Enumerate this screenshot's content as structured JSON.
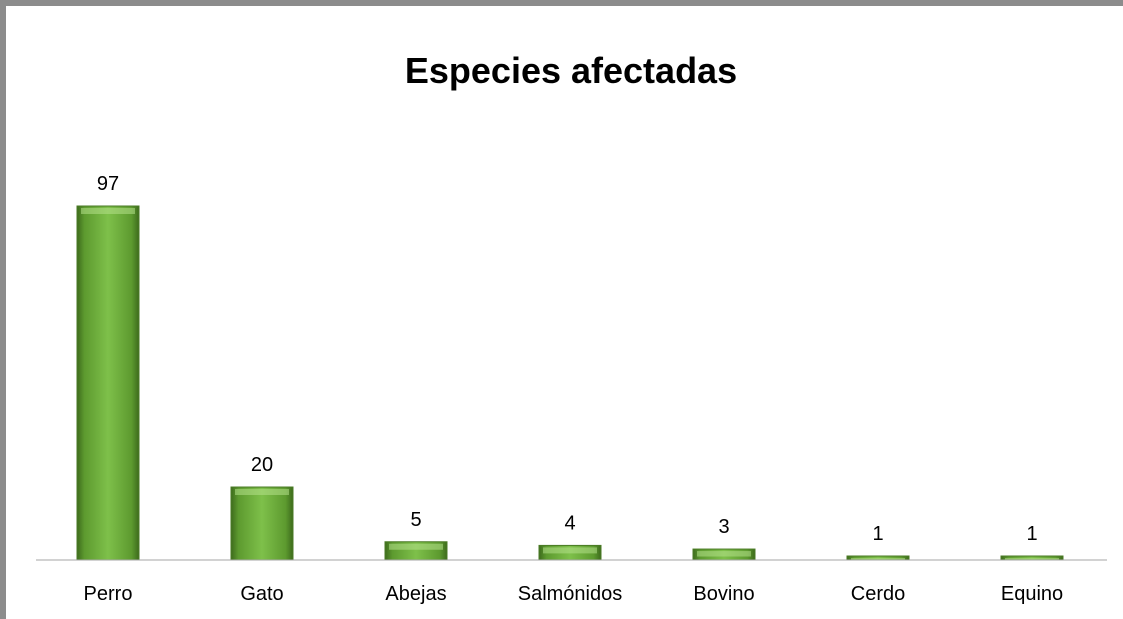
{
  "chart_data": {
    "type": "bar",
    "title": "Especies afectadas",
    "categories": [
      "Perro",
      "Gato",
      "Abejas",
      "Salmónidos",
      "Bovino",
      "Cerdo",
      "Equino"
    ],
    "values": [
      97,
      20,
      5,
      4,
      3,
      1,
      1
    ],
    "xlabel": "",
    "ylabel": "",
    "ylim": [
      0,
      100
    ],
    "grid": false,
    "legend": "none",
    "data_labels": true,
    "bar_color": "#6aa537"
  }
}
